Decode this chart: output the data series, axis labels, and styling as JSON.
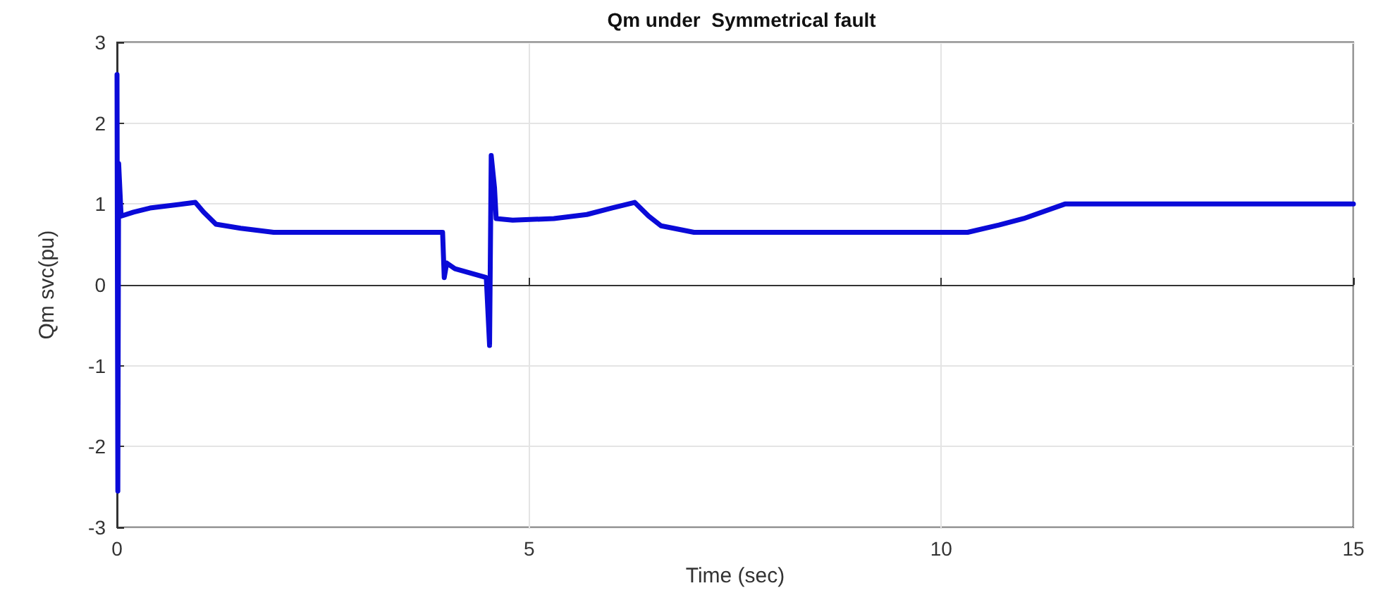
{
  "chart_data": {
    "type": "line",
    "title": "Qm under  Symmetrical fault",
    "xlabel": "Time (sec)",
    "ylabel": "Qm svc(pu)",
    "xlim": [
      0,
      15
    ],
    "xticks": [
      0,
      5,
      10,
      15
    ],
    "ylim": [
      -3,
      3
    ],
    "yticks": [
      -3,
      -2,
      -1,
      0,
      1,
      2,
      3
    ],
    "grid": true,
    "marker": "none",
    "line_style": "solid",
    "series": [
      {
        "color": "#0a0ad8",
        "x": [
          0,
          0.01,
          0.02,
          0.05,
          0.2,
          0.4,
          0.8,
          0.95,
          1.05,
          1.2,
          1.5,
          1.9,
          3.95,
          3.97,
          4.0,
          4.1,
          4.48,
          4.52,
          4.54,
          4.58,
          4.6,
          4.8,
          5.3,
          5.7,
          6.0,
          6.28,
          6.45,
          6.6,
          7.0,
          10.32,
          10.7,
          11.0,
          11.5,
          15
        ],
        "values": [
          2.6,
          -2.55,
          1.5,
          0.85,
          0.9,
          0.95,
          1.0,
          1.02,
          0.9,
          0.75,
          0.7,
          0.65,
          0.65,
          0.09,
          0.27,
          0.2,
          0.09,
          -0.75,
          1.6,
          1.2,
          0.82,
          0.8,
          0.82,
          0.87,
          0.95,
          1.02,
          0.85,
          0.73,
          0.65,
          0.65,
          0.74,
          0.82,
          1.0,
          1.0
        ]
      }
    ]
  }
}
